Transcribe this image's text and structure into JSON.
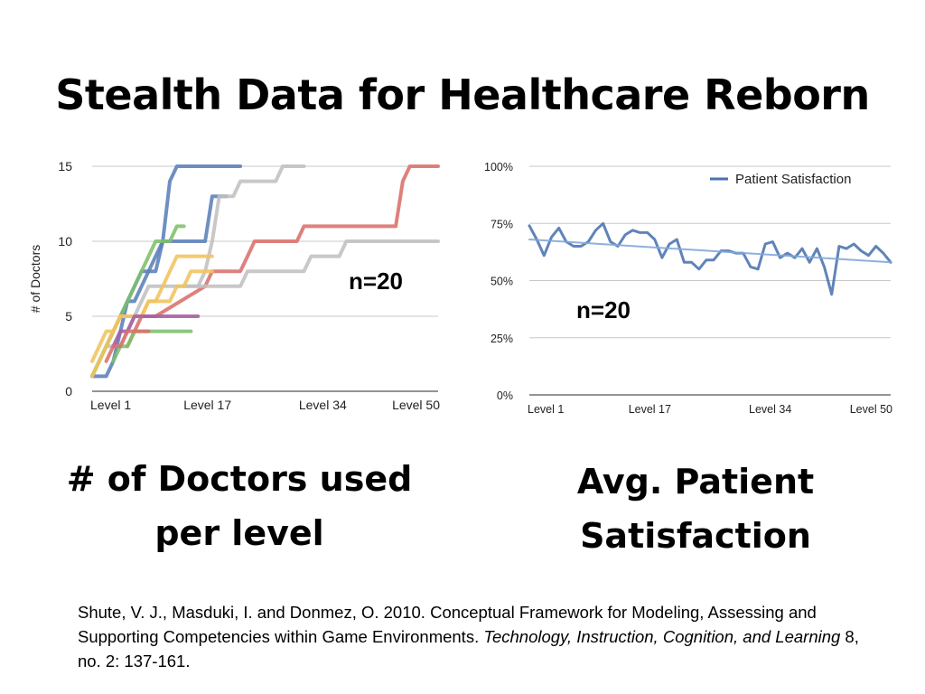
{
  "slide": {
    "title": "Stealth Data for Healthcare Reborn",
    "caption_left_line1": "# of Doctors used",
    "caption_left_line2": "per level",
    "caption_right_line1": "Avg. Patient",
    "caption_right_line2": "Satisfaction",
    "citation": {
      "part1": "Shute, V. J., Masduki, I. and Donmez, O. 2010. Conceptual Framework for Modeling, Assessing and Supporting Competencies within Game Environments. ",
      "journal": "Technology, Instruction, Cognition, and Learning",
      "part2": " 8, no. 2: 137-161."
    }
  },
  "chart_data": [
    {
      "type": "line",
      "ylabel": "# of Doctors",
      "annotation": "n=20",
      "ylim": [
        0,
        15
      ],
      "yticks": [
        0,
        5,
        10,
        15
      ],
      "xlim": [
        1,
        50
      ],
      "xtick_labels": [
        "Level 1",
        "Level 17",
        "Level 34",
        "Level 50"
      ],
      "grid": true,
      "series": [
        {
          "color": "#5b7fb8",
          "x": [
            1,
            3,
            4,
            5,
            6,
            7,
            8,
            9,
            10,
            11,
            12,
            13,
            14,
            15,
            16,
            22
          ],
          "y": [
            1,
            1,
            2,
            4,
            6,
            7,
            8,
            8,
            8,
            10,
            14,
            15,
            15,
            15,
            15,
            15
          ]
        },
        {
          "color": "#5b7fb8",
          "x": [
            1,
            2,
            3,
            4,
            5,
            6,
            7,
            8,
            9,
            10,
            11,
            17,
            18,
            19,
            20
          ],
          "y": [
            1,
            2,
            3,
            4,
            5,
            6,
            6,
            7,
            8,
            9,
            10,
            10,
            13,
            13,
            13
          ]
        },
        {
          "color": "#c0c0c0",
          "x": [
            1,
            2,
            3,
            4,
            5,
            6,
            7,
            8,
            9,
            10,
            11,
            12,
            13,
            14,
            15,
            16,
            17,
            18,
            19,
            20,
            21,
            22,
            23,
            24,
            25,
            26,
            27,
            28,
            29,
            30,
            31
          ],
          "y": [
            1,
            2,
            3,
            3,
            3,
            4,
            5,
            6,
            7,
            7,
            7,
            7,
            7,
            7,
            7,
            7,
            8,
            10,
            13,
            13,
            13,
            14,
            14,
            14,
            14,
            14,
            14,
            15,
            15,
            15,
            15
          ]
        },
        {
          "color": "#d9706b",
          "x": [
            6,
            7,
            8,
            9,
            10,
            17,
            18,
            19,
            20,
            21,
            22,
            23,
            24,
            25,
            26,
            27,
            28,
            29,
            30,
            31,
            32,
            33,
            34,
            35,
            36,
            37,
            38,
            39,
            40,
            41,
            42,
            43,
            44,
            45,
            46,
            47,
            48,
            49,
            50
          ],
          "y": [
            3,
            4,
            5,
            5,
            5,
            7,
            8,
            8,
            8,
            8,
            8,
            9,
            10,
            10,
            10,
            10,
            10,
            10,
            10,
            11,
            11,
            11,
            11,
            11,
            11,
            11,
            11,
            11,
            11,
            11,
            11,
            11,
            11,
            14,
            15,
            15,
            15,
            15,
            15
          ]
        },
        {
          "color": "#c0c0c0",
          "x": [
            14,
            15,
            16,
            17,
            18,
            19,
            20,
            21,
            22,
            23,
            24,
            25,
            26,
            27,
            28,
            29,
            30,
            31,
            32,
            33,
            34,
            35,
            36,
            37,
            38,
            39,
            40,
            41,
            42,
            43,
            44,
            45,
            46,
            47,
            48,
            49,
            50
          ],
          "y": [
            7,
            7,
            7,
            7,
            7,
            7,
            7,
            7,
            7,
            8,
            8,
            8,
            8,
            8,
            8,
            8,
            8,
            8,
            9,
            9,
            9,
            9,
            9,
            10,
            10,
            10,
            10,
            10,
            10,
            10,
            10,
            10,
            10,
            10,
            10,
            10,
            10
          ]
        },
        {
          "color": "#7dc06b",
          "x": [
            1,
            2,
            3,
            4,
            5,
            6,
            7,
            8,
            9,
            10,
            11,
            12,
            13,
            14
          ],
          "y": [
            1,
            2,
            3,
            4,
            5,
            6,
            7,
            8,
            9,
            10,
            10,
            10,
            11,
            11
          ]
        },
        {
          "color": "#f2c35c",
          "x": [
            1,
            2,
            3,
            4,
            5,
            6,
            7,
            8,
            9,
            10,
            11,
            12,
            13,
            14,
            15,
            16,
            17,
            18
          ],
          "y": [
            1,
            2,
            3,
            4,
            5,
            5,
            5,
            5,
            6,
            6,
            7,
            8,
            9,
            9,
            9,
            9,
            9,
            9
          ]
        },
        {
          "color": "#f2c35c",
          "x": [
            1,
            2,
            3,
            4,
            5,
            6,
            7,
            8,
            9,
            10,
            11,
            12,
            13,
            14,
            15,
            16,
            17,
            18
          ],
          "y": [
            2,
            3,
            4,
            4,
            5,
            5,
            5,
            5,
            6,
            6,
            6,
            6,
            7,
            7,
            8,
            8,
            8,
            8
          ]
        },
        {
          "color": "#a45fa4",
          "x": [
            4,
            5,
            6,
            7,
            8,
            9,
            10,
            11,
            12,
            13,
            14,
            15,
            16
          ],
          "y": [
            3,
            4,
            4,
            5,
            5,
            5,
            5,
            5,
            5,
            5,
            5,
            5,
            5
          ]
        },
        {
          "color": "#7dc06b",
          "x": [
            4,
            5,
            6,
            7,
            8,
            9,
            10,
            11,
            12,
            13,
            14,
            15
          ],
          "y": [
            2,
            3,
            3,
            4,
            4,
            4,
            4,
            4,
            4,
            4,
            4,
            4
          ]
        },
        {
          "color": "#d9706b",
          "x": [
            3,
            4,
            5,
            6,
            7,
            8,
            9
          ],
          "y": [
            2,
            3,
            3,
            4,
            4,
            4,
            4
          ]
        }
      ]
    },
    {
      "type": "line",
      "annotation": "n=20",
      "ylim": [
        0,
        100
      ],
      "yticks": [
        0,
        25,
        50,
        75,
        100
      ],
      "ytick_labels": [
        "0%",
        "25%",
        "50%",
        "75%",
        "100%"
      ],
      "xlim": [
        1,
        50
      ],
      "xtick_labels": [
        "Level 1",
        "Level 17",
        "Level 34",
        "Level 50"
      ],
      "grid": true,
      "legend": {
        "position": "top-right",
        "entries": [
          "Patient Satisfaction"
        ]
      },
      "series": [
        {
          "name": "Patient Satisfaction",
          "color": "#4a72b0",
          "x": [
            1,
            2,
            3,
            4,
            5,
            6,
            7,
            8,
            9,
            10,
            11,
            12,
            13,
            14,
            15,
            16,
            17,
            18,
            19,
            20,
            21,
            22,
            23,
            24,
            25,
            26,
            27,
            28,
            29,
            30,
            31,
            32,
            33,
            34,
            35,
            36,
            37,
            38,
            39,
            40,
            41,
            42,
            43,
            44,
            45,
            46,
            47,
            48,
            49,
            50
          ],
          "y": [
            74,
            68,
            61,
            69,
            73,
            67,
            65,
            65,
            67,
            72,
            75,
            67,
            65,
            70,
            72,
            71,
            71,
            68,
            60,
            66,
            68,
            58,
            58,
            55,
            59,
            59,
            63,
            63,
            62,
            62,
            56,
            55,
            66,
            67,
            60,
            62,
            60,
            64,
            58,
            64,
            56,
            44,
            65,
            64,
            66,
            63,
            61,
            65,
            62,
            58
          ]
        },
        {
          "name": "trend",
          "color": "#7fa8d9",
          "x": [
            1,
            50
          ],
          "y": [
            68,
            58
          ]
        }
      ]
    }
  ]
}
